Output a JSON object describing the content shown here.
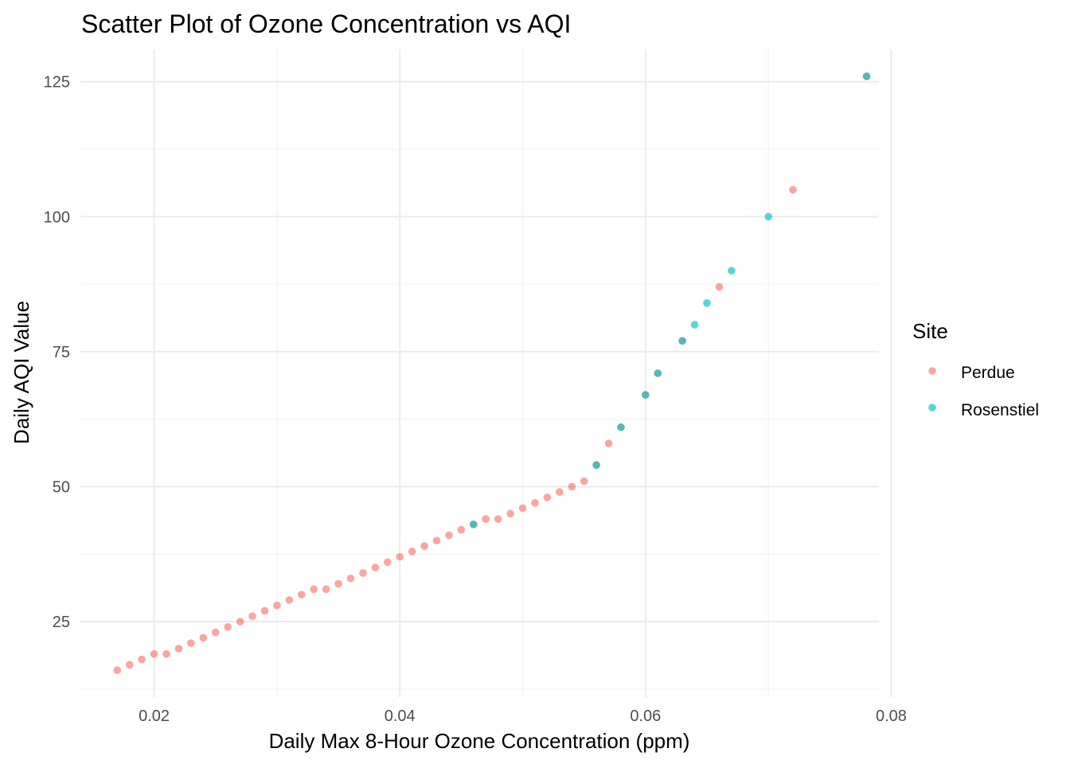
{
  "chart_data": {
    "type": "scatter",
    "title": "Scatter Plot of Ozone Concentration vs AQI",
    "xlabel": "Daily Max 8-Hour Ozone Concentration (ppm)",
    "ylabel": "Daily AQI Value",
    "xlim": [
      0.014,
      0.079
    ],
    "ylim": [
      11,
      131
    ],
    "x_ticks": [
      0.02,
      0.04,
      0.06,
      0.08
    ],
    "x_tick_labels": [
      "0.02",
      "0.04",
      "0.06",
      "0.08"
    ],
    "y_ticks": [
      25,
      50,
      75,
      100,
      125
    ],
    "y_tick_labels": [
      "25",
      "50",
      "75",
      "100",
      "125"
    ],
    "grid": true,
    "legend": {
      "title": "Site",
      "placement": "right",
      "entries": [
        "Perdue",
        "Rosenstiel"
      ]
    },
    "series": [
      {
        "name": "Perdue",
        "color": "#F8766D",
        "x": [
          0.017,
          0.018,
          0.019,
          0.02,
          0.021,
          0.022,
          0.023,
          0.024,
          0.025,
          0.026,
          0.027,
          0.028,
          0.029,
          0.03,
          0.031,
          0.032,
          0.033,
          0.034,
          0.035,
          0.036,
          0.037,
          0.038,
          0.039,
          0.04,
          0.041,
          0.042,
          0.043,
          0.044,
          0.045,
          0.046,
          0.047,
          0.048,
          0.049,
          0.05,
          0.051,
          0.052,
          0.053,
          0.054,
          0.055,
          0.056,
          0.057,
          0.058,
          0.06,
          0.061,
          0.063,
          0.066,
          0.072,
          0.078
        ],
        "y": [
          16,
          17,
          18,
          19,
          19,
          20,
          21,
          22,
          23,
          24,
          25,
          26,
          27,
          28,
          29,
          30,
          31,
          31,
          32,
          33,
          34,
          35,
          36,
          37,
          38,
          39,
          40,
          41,
          42,
          43,
          44,
          44,
          45,
          46,
          47,
          48,
          49,
          50,
          51,
          54,
          58,
          61,
          67,
          71,
          77,
          87,
          105,
          126
        ]
      },
      {
        "name": "Rosenstiel",
        "color": "#00BFC4",
        "x": [
          0.046,
          0.056,
          0.058,
          0.06,
          0.061,
          0.063,
          0.064,
          0.065,
          0.067,
          0.07,
          0.078
        ],
        "y": [
          43,
          54,
          61,
          67,
          71,
          77,
          80,
          84,
          90,
          100,
          126
        ]
      }
    ]
  }
}
